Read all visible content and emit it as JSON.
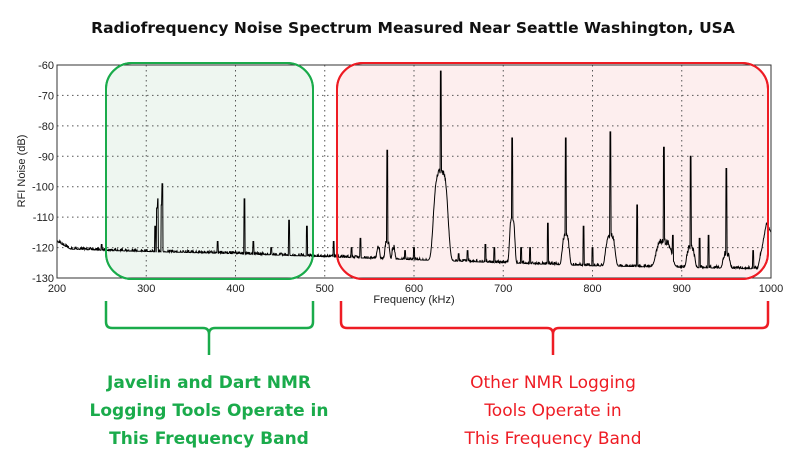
{
  "chart_data": {
    "type": "line",
    "title": "Radiofrequency Noise Spectrum Measured Near Seattle Washington, USA",
    "xlabel": "Frequency (kHz)",
    "ylabel": "RFI Noise (dB)",
    "xlim": [
      200,
      1000
    ],
    "ylim": [
      -130,
      -60
    ],
    "xticks": [
      200,
      300,
      400,
      500,
      600,
      700,
      800,
      900,
      1000
    ],
    "yticks": [
      -60,
      -70,
      -80,
      -90,
      -100,
      -110,
      -120,
      -130
    ],
    "grid": true,
    "series": [
      {
        "name": "RFI noise",
        "color": "#000000",
        "baseline": [
          [
            200,
            -118
          ],
          [
            215,
            -120.5
          ],
          [
            260,
            -121
          ],
          [
            400,
            -122
          ],
          [
            500,
            -123
          ],
          [
            600,
            -124
          ],
          [
            700,
            -125
          ],
          [
            800,
            -126
          ],
          [
            900,
            -126.5
          ],
          [
            985,
            -127
          ],
          [
            990,
            -120
          ],
          [
            995,
            -112
          ],
          [
            1000,
            -115
          ]
        ],
        "peaks": [
          {
            "f": 310,
            "db": -113
          },
          {
            "f": 312,
            "db": -107
          },
          {
            "f": 313,
            "db": -104
          },
          {
            "f": 317,
            "db": -106
          },
          {
            "f": 318,
            "db": -99
          },
          {
            "f": 250,
            "db": -119
          },
          {
            "f": 380,
            "db": -118
          },
          {
            "f": 410,
            "db": -104
          },
          {
            "f": 420,
            "db": -118
          },
          {
            "f": 440,
            "db": -120
          },
          {
            "f": 460,
            "db": -111
          },
          {
            "f": 480,
            "db": -113
          },
          {
            "f": 510,
            "db": -118
          },
          {
            "f": 530,
            "db": -120
          },
          {
            "f": 540,
            "db": -117
          },
          {
            "f": 570,
            "db": -88
          },
          {
            "f": 590,
            "db": -121
          },
          {
            "f": 600,
            "db": -120
          },
          {
            "f": 630,
            "db": -62
          },
          {
            "f": 650,
            "db": -122
          },
          {
            "f": 660,
            "db": -121
          },
          {
            "f": 680,
            "db": -119
          },
          {
            "f": 690,
            "db": -120
          },
          {
            "f": 710,
            "db": -84
          },
          {
            "f": 720,
            "db": -120
          },
          {
            "f": 730,
            "db": -120
          },
          {
            "f": 750,
            "db": -112
          },
          {
            "f": 770,
            "db": -84
          },
          {
            "f": 790,
            "db": -113
          },
          {
            "f": 800,
            "db": -120
          },
          {
            "f": 820,
            "db": -82
          },
          {
            "f": 850,
            "db": -106
          },
          {
            "f": 880,
            "db": -87
          },
          {
            "f": 890,
            "db": -116
          },
          {
            "f": 910,
            "db": -90
          },
          {
            "f": 920,
            "db": -117
          },
          {
            "f": 930,
            "db": -116
          },
          {
            "f": 950,
            "db": -94
          },
          {
            "f": 980,
            "db": -121
          }
        ],
        "bumps": [
          {
            "f": 570,
            "width": 6,
            "db": -118
          },
          {
            "f": 560,
            "width": 4,
            "db": -120
          },
          {
            "f": 577,
            "width": 4,
            "db": -120
          },
          {
            "f": 630,
            "width": 18,
            "db": -95
          },
          {
            "f": 710,
            "width": 7,
            "db": -111
          },
          {
            "f": 770,
            "width": 9,
            "db": -116
          },
          {
            "f": 820,
            "width": 12,
            "db": -116
          },
          {
            "f": 880,
            "width": 20,
            "db": -118
          },
          {
            "f": 910,
            "width": 10,
            "db": -120
          },
          {
            "f": 950,
            "width": 9,
            "db": -122
          }
        ]
      }
    ],
    "annotations": [
      {
        "label": "Javelin and Dart NMR Logging Tools Operate in This Frequency Band",
        "lines": [
          "Javelin and Dart NMR",
          "Logging Tools Operate in",
          "This Frequency Band"
        ],
        "range_khz": [
          260,
          490
        ],
        "color": "#1aab4b",
        "fill": "#eef6f0"
      },
      {
        "label": "Other NMR Logging Tools Operate in This Frequency Band",
        "lines": [
          "Other NMR Logging",
          "Tools Operate in",
          "This Frequency Band"
        ],
        "range_khz": [
          515,
          1000
        ],
        "color": "#ee1c24",
        "fill": "#fdeeee"
      }
    ]
  }
}
